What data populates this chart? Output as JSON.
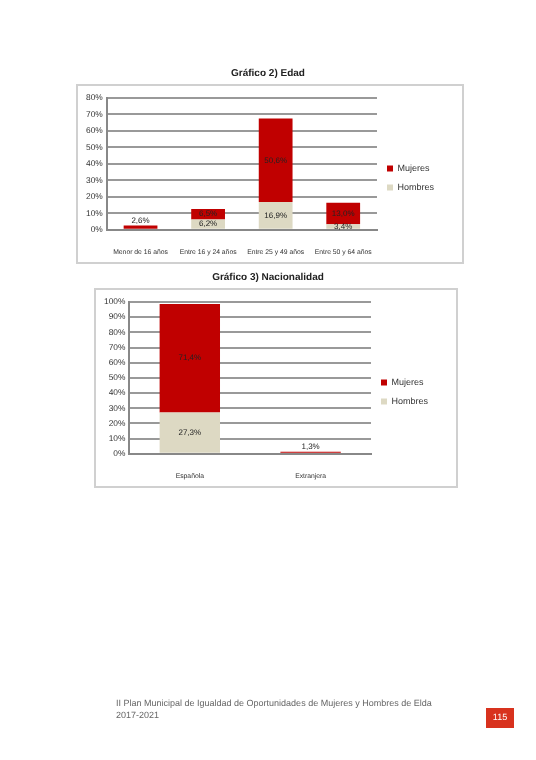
{
  "chart_data": [
    {
      "type": "bar",
      "title": "Gráfico 2) Edad",
      "categories": [
        "Menor de 16 años",
        "Entre 16 y 24 años",
        "Entre 25 y 49 años",
        "Entre 50 y 64 años"
      ],
      "stacked": true,
      "series": [
        {
          "name": "Hombres",
          "color": "#ddd9c3",
          "values": [
            null,
            6.2,
            16.9,
            3.4
          ],
          "value_labels": [
            null,
            "6,2%",
            "16,9%",
            "3,4%"
          ]
        },
        {
          "name": "Mujeres",
          "color": "#c00000",
          "values": [
            2.6,
            6.5,
            50.6,
            13.0
          ],
          "value_labels": [
            "2,6%",
            "6,5%",
            "50,6%",
            "13,0%"
          ]
        }
      ],
      "ylim": [
        0,
        80
      ],
      "yticks": [
        {
          "value": 0,
          "label": "0%"
        },
        {
          "value": 10,
          "label": "10%"
        },
        {
          "value": 20,
          "label": "20%"
        },
        {
          "value": 30,
          "label": "30%"
        },
        {
          "value": 40,
          "label": "40%"
        },
        {
          "value": 50,
          "label": "50%"
        },
        {
          "value": 60,
          "label": "60%"
        },
        {
          "value": 70,
          "label": "70%"
        },
        {
          "value": 80,
          "label": "80%"
        }
      ],
      "grid": "y",
      "legend": "right"
    },
    {
      "type": "bar",
      "title": "Gráfico 3) Nacionalidad",
      "categories": [
        "Española",
        "Extranjera"
      ],
      "stacked": true,
      "series": [
        {
          "name": "Hombres",
          "color": "#ddd9c3",
          "values": [
            27.3,
            null
          ],
          "value_labels": [
            "27,3%",
            null
          ]
        },
        {
          "name": "Mujeres",
          "color": "#c00000",
          "values": [
            71.4,
            1.3
          ],
          "value_labels": [
            "71,4%",
            "1,3%"
          ]
        }
      ],
      "ylim": [
        0,
        100
      ],
      "yticks": [
        {
          "value": 0,
          "label": "0%"
        },
        {
          "value": 10,
          "label": "10%"
        },
        {
          "value": 20,
          "label": "20%"
        },
        {
          "value": 30,
          "label": "30%"
        },
        {
          "value": 40,
          "label": "40%"
        },
        {
          "value": 50,
          "label": "50%"
        },
        {
          "value": 60,
          "label": "60%"
        },
        {
          "value": 70,
          "label": "70%"
        },
        {
          "value": 80,
          "label": "80%"
        },
        {
          "value": 90,
          "label": "90%"
        },
        {
          "value": 100,
          "label": "100%"
        }
      ],
      "grid": "y",
      "legend": "right",
      "annotations": [
        "II Plan Municipal de Igualdad de Oportunidades de Mujeres y Hombres de Elda 2017-2021",
        "115"
      ]
    }
  ]
}
